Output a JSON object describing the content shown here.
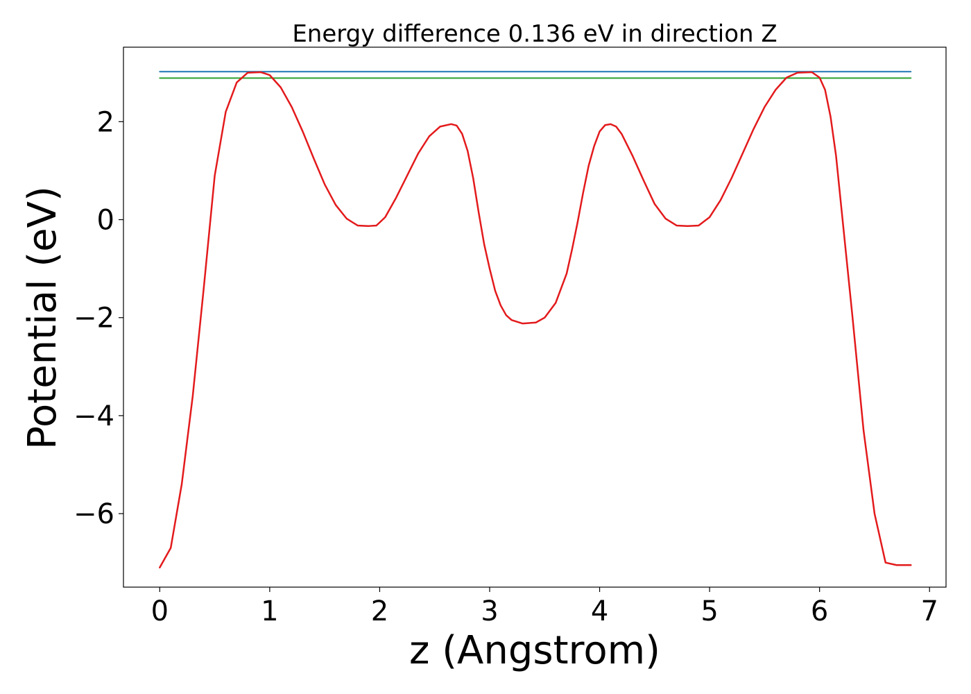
{
  "chart_data": {
    "type": "line",
    "title": "Energy difference 0.136 eV in direction Z",
    "xlabel": "z (Angstrom)",
    "ylabel": "Potential (eV)",
    "xlim": [
      -0.33,
      7.15
    ],
    "ylim": [
      -7.5,
      3.52
    ],
    "xticks": [
      0,
      1,
      2,
      3,
      4,
      5,
      6,
      7
    ],
    "xtick_labels": [
      "0",
      "1",
      "2",
      "3",
      "4",
      "5",
      "6",
      "7"
    ],
    "yticks": [
      2,
      0,
      -2,
      -4,
      -6
    ],
    "ytick_labels": [
      "2",
      "0",
      "−2",
      "−4",
      "−6"
    ],
    "grid": false,
    "series": [
      {
        "color": "#1f77b4",
        "x": [
          0.0,
          6.83
        ],
        "y": [
          3.02,
          3.02
        ]
      },
      {
        "color": "#2ca02c",
        "x": [
          0.0,
          6.83
        ],
        "y": [
          2.89,
          2.89
        ]
      },
      {
        "color": "#e31a1c",
        "x": [
          0.0,
          0.1,
          0.2,
          0.3,
          0.4,
          0.5,
          0.6,
          0.7,
          0.8,
          0.92,
          1.0,
          1.1,
          1.2,
          1.3,
          1.4,
          1.5,
          1.6,
          1.7,
          1.8,
          1.9,
          1.97,
          2.05,
          2.15,
          2.25,
          2.35,
          2.45,
          2.55,
          2.65,
          2.7,
          2.75,
          2.8,
          2.85,
          2.9,
          2.95,
          3.0,
          3.05,
          3.1,
          3.15,
          3.2,
          3.3,
          3.42,
          3.5,
          3.6,
          3.7,
          3.75,
          3.8,
          3.85,
          3.9,
          3.95,
          4.0,
          4.05,
          4.1,
          4.15,
          4.2,
          4.3,
          4.4,
          4.5,
          4.6,
          4.7,
          4.8,
          4.9,
          5.0,
          5.1,
          5.2,
          5.3,
          5.4,
          5.5,
          5.6,
          5.7,
          5.8,
          5.93,
          6.0,
          6.05,
          6.1,
          6.15,
          6.2,
          6.3,
          6.4,
          6.5,
          6.6,
          6.7,
          6.83
        ],
        "y": [
          -7.1,
          -6.7,
          -5.4,
          -3.6,
          -1.4,
          0.9,
          2.2,
          2.8,
          3.0,
          3.01,
          2.95,
          2.7,
          2.3,
          1.8,
          1.25,
          0.72,
          0.3,
          0.02,
          -0.12,
          -0.13,
          -0.12,
          0.05,
          0.45,
          0.9,
          1.35,
          1.7,
          1.9,
          1.95,
          1.92,
          1.75,
          1.4,
          0.85,
          0.15,
          -0.5,
          -1.0,
          -1.45,
          -1.75,
          -1.95,
          -2.05,
          -2.12,
          -2.1,
          -2.0,
          -1.7,
          -1.1,
          -0.6,
          -0.05,
          0.55,
          1.1,
          1.5,
          1.8,
          1.93,
          1.95,
          1.9,
          1.75,
          1.3,
          0.8,
          0.32,
          0.02,
          -0.12,
          -0.13,
          -0.12,
          0.05,
          0.4,
          0.85,
          1.35,
          1.85,
          2.3,
          2.65,
          2.9,
          3.0,
          3.01,
          2.9,
          2.65,
          2.1,
          1.3,
          0.2,
          -2.0,
          -4.3,
          -6.0,
          -7.0,
          -7.05,
          -7.05
        ]
      }
    ]
  }
}
